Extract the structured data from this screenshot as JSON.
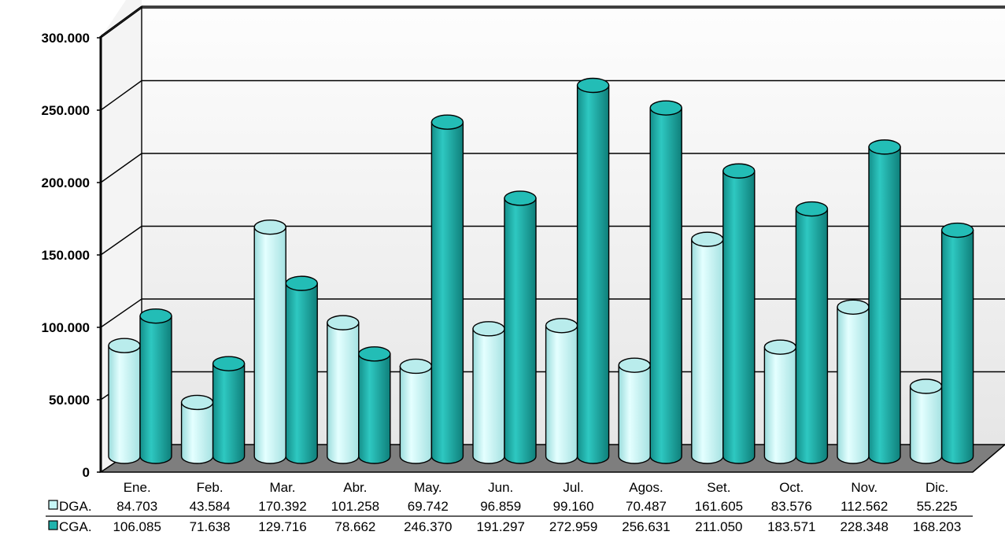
{
  "chart_data": {
    "type": "bar",
    "style": "3d-cylinder",
    "categories": [
      "Ene.",
      "Feb.",
      "Mar.",
      "Abr.",
      "May.",
      "Jun.",
      "Jul.",
      "Agos.",
      "Set.",
      "Oct.",
      "Nov.",
      "Dic."
    ],
    "series": [
      {
        "name": "DGA.",
        "color": "#c6f6f6",
        "value_labels": [
          "84.703",
          "43.584",
          "170.392",
          "101.258",
          "69.742",
          "96.859",
          "99.160",
          "70.487",
          "161.605",
          "83.576",
          "112.562",
          "55.225"
        ],
        "values": [
          84703,
          43584,
          170392,
          101258,
          69742,
          96859,
          99160,
          70487,
          161605,
          83576,
          112562,
          55225
        ]
      },
      {
        "name": "CGA.",
        "color": "#1fb3ad",
        "value_labels": [
          "106.085",
          "71.638",
          "129.716",
          "78.662",
          "246.370",
          "191.297",
          "272.959",
          "256.631",
          "211.050",
          "183.571",
          "228.348",
          "168.203"
        ],
        "values": [
          106085,
          71638,
          129716,
          78662,
          246370,
          191297,
          272959,
          256631,
          211050,
          183571,
          228348,
          168203
        ]
      }
    ],
    "yticks": [
      "0",
      "50.000",
      "100.000",
      "150.000",
      "200.000",
      "250.000",
      "300.000"
    ],
    "ylim": [
      0,
      300000
    ],
    "grid": true,
    "legend": "data-table"
  }
}
